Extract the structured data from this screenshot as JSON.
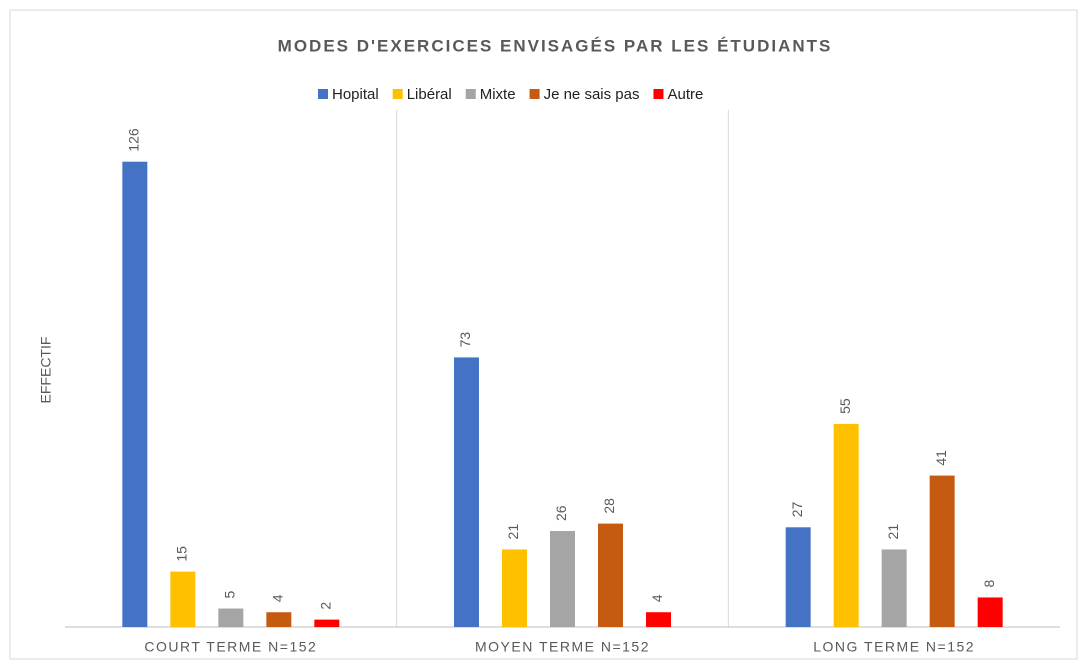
{
  "chart_data": {
    "type": "bar",
    "title": "MODES D'EXERCICES ENVISAGÉS PAR LES ÉTUDIANTS",
    "y_label": "EFFECTIF",
    "categories": [
      "COURT TERME N=152",
      "MOYEN TERME N=152",
      "LONG TERME N=152"
    ],
    "series": [
      {
        "name": "Hopital",
        "color": "#4472c4",
        "values": [
          126,
          73,
          27
        ]
      },
      {
        "name": "Libéral",
        "color": "#ffc000",
        "values": [
          15,
          21,
          55
        ]
      },
      {
        "name": "Mixte",
        "color": "#a5a5a5",
        "values": [
          5,
          26,
          21
        ]
      },
      {
        "name": "Je ne sais pas",
        "color": "#c55a11",
        "values": [
          4,
          28,
          41
        ]
      },
      {
        "name": "Autre",
        "color": "#ff0000",
        "values": [
          2,
          4,
          8
        ]
      }
    ],
    "ylim": [
      0,
      140
    ],
    "legend": "top"
  }
}
